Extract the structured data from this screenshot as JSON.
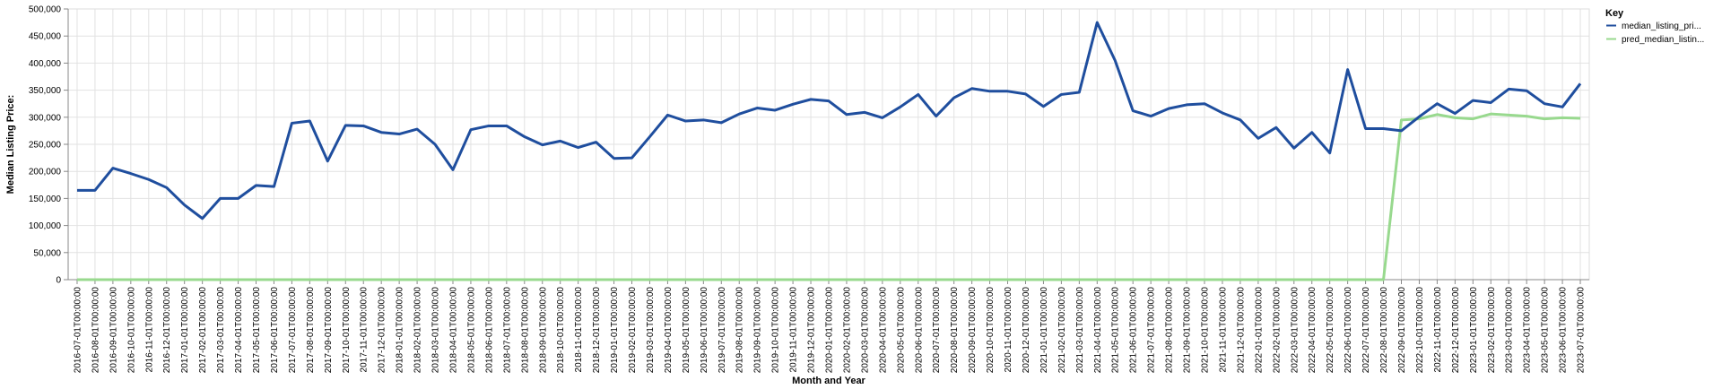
{
  "chart_data": {
    "type": "line",
    "xlabel": "Month and Year",
    "ylabel": "Median Listing Price:",
    "ylim": [
      0,
      500000
    ],
    "y_ticks": [
      "0",
      "50,000",
      "100,000",
      "150,000",
      "200,000",
      "250,000",
      "300,000",
      "350,000",
      "400,000",
      "450,000",
      "500,000"
    ],
    "grid": true,
    "legend": {
      "title": "Key",
      "position": "top-right"
    },
    "x": [
      "2016-07-01T00:00:00",
      "2016-08-01T00:00:00",
      "2016-09-01T00:00:00",
      "2016-10-01T00:00:00",
      "2016-11-01T00:00:00",
      "2016-12-01T00:00:00",
      "2017-01-01T00:00:00",
      "2017-02-01T00:00:00",
      "2017-03-01T00:00:00",
      "2017-04-01T00:00:00",
      "2017-05-01T00:00:00",
      "2017-06-01T00:00:00",
      "2017-07-01T00:00:00",
      "2017-08-01T00:00:00",
      "2017-09-01T00:00:00",
      "2017-10-01T00:00:00",
      "2017-11-01T00:00:00",
      "2017-12-01T00:00:00",
      "2018-01-01T00:00:00",
      "2018-02-01T00:00:00",
      "2018-03-01T00:00:00",
      "2018-04-01T00:00:00",
      "2018-05-01T00:00:00",
      "2018-06-01T00:00:00",
      "2018-07-01T00:00:00",
      "2018-08-01T00:00:00",
      "2018-09-01T00:00:00",
      "2018-10-01T00:00:00",
      "2018-11-01T00:00:00",
      "2018-12-01T00:00:00",
      "2019-01-01T00:00:00",
      "2019-02-01T00:00:00",
      "2019-03-01T00:00:00",
      "2019-04-01T00:00:00",
      "2019-05-01T00:00:00",
      "2019-06-01T00:00:00",
      "2019-07-01T00:00:00",
      "2019-08-01T00:00:00",
      "2019-09-01T00:00:00",
      "2019-10-01T00:00:00",
      "2019-11-01T00:00:00",
      "2019-12-01T00:00:00",
      "2020-01-01T00:00:00",
      "2020-02-01T00:00:00",
      "2020-03-01T00:00:00",
      "2020-04-01T00:00:00",
      "2020-05-01T00:00:00",
      "2020-06-01T00:00:00",
      "2020-07-01T00:00:00",
      "2020-08-01T00:00:00",
      "2020-09-01T00:00:00",
      "2020-10-01T00:00:00",
      "2020-11-01T00:00:00",
      "2020-12-01T00:00:00",
      "2021-01-01T00:00:00",
      "2021-02-01T00:00:00",
      "2021-03-01T00:00:00",
      "2021-04-01T00:00:00",
      "2021-05-01T00:00:00",
      "2021-06-01T00:00:00",
      "2021-07-01T00:00:00",
      "2021-08-01T00:00:00",
      "2021-09-01T00:00:00",
      "2021-10-01T00:00:00",
      "2021-11-01T00:00:00",
      "2021-12-01T00:00:00",
      "2022-01-01T00:00:00",
      "2022-02-01T00:00:00",
      "2022-03-01T00:00:00",
      "2022-04-01T00:00:00",
      "2022-05-01T00:00:00",
      "2022-06-01T00:00:00",
      "2022-07-01T00:00:00",
      "2022-08-01T00:00:00",
      "2022-09-01T00:00:00",
      "2022-10-01T00:00:00",
      "2022-11-01T00:00:00",
      "2022-12-01T00:00:00",
      "2023-01-01T00:00:00",
      "2023-02-01T00:00:00",
      "2023-03-01T00:00:00",
      "2023-04-01T00:00:00",
      "2023-05-01T00:00:00",
      "2023-06-01T00:00:00",
      "2023-07-01T00:00:00"
    ],
    "series": [
      {
        "name": "median_listing_pri...",
        "color": "#1f4e9e",
        "values": [
          165000,
          165000,
          206000,
          196000,
          185000,
          170000,
          138000,
          113000,
          150000,
          150000,
          174000,
          172000,
          289000,
          293000,
          219000,
          285000,
          284000,
          272000,
          269000,
          278000,
          250000,
          203000,
          277000,
          284000,
          284000,
          264000,
          249000,
          256000,
          244000,
          254000,
          224000,
          225000,
          264000,
          304000,
          293000,
          295000,
          290000,
          306000,
          317000,
          313000,
          324000,
          333000,
          330000,
          305000,
          309000,
          299000,
          319000,
          342000,
          302000,
          336000,
          353000,
          348000,
          348000,
          343000,
          320000,
          342000,
          346000,
          475000,
          405000,
          312000,
          302000,
          316000,
          323000,
          325000,
          308000,
          295000,
          261000,
          281000,
          243000,
          272000,
          234000,
          388000,
          279000,
          279000,
          275000,
          301000,
          325000,
          307000,
          331000,
          327000,
          352000,
          349000,
          325000,
          319000,
          362000
        ]
      },
      {
        "name": "pred_median_listin...",
        "color": "#98d98e",
        "values": [
          0,
          0,
          0,
          0,
          0,
          0,
          0,
          0,
          0,
          0,
          0,
          0,
          0,
          0,
          0,
          0,
          0,
          0,
          0,
          0,
          0,
          0,
          0,
          0,
          0,
          0,
          0,
          0,
          0,
          0,
          0,
          0,
          0,
          0,
          0,
          0,
          0,
          0,
          0,
          0,
          0,
          0,
          0,
          0,
          0,
          0,
          0,
          0,
          0,
          0,
          0,
          0,
          0,
          0,
          0,
          0,
          0,
          0,
          0,
          0,
          0,
          0,
          0,
          0,
          0,
          0,
          0,
          0,
          0,
          0,
          0,
          0,
          0,
          0,
          295000,
          297000,
          305000,
          299000,
          297000,
          306000,
          304000,
          302000,
          297000,
          299000,
          298000
        ]
      }
    ]
  }
}
